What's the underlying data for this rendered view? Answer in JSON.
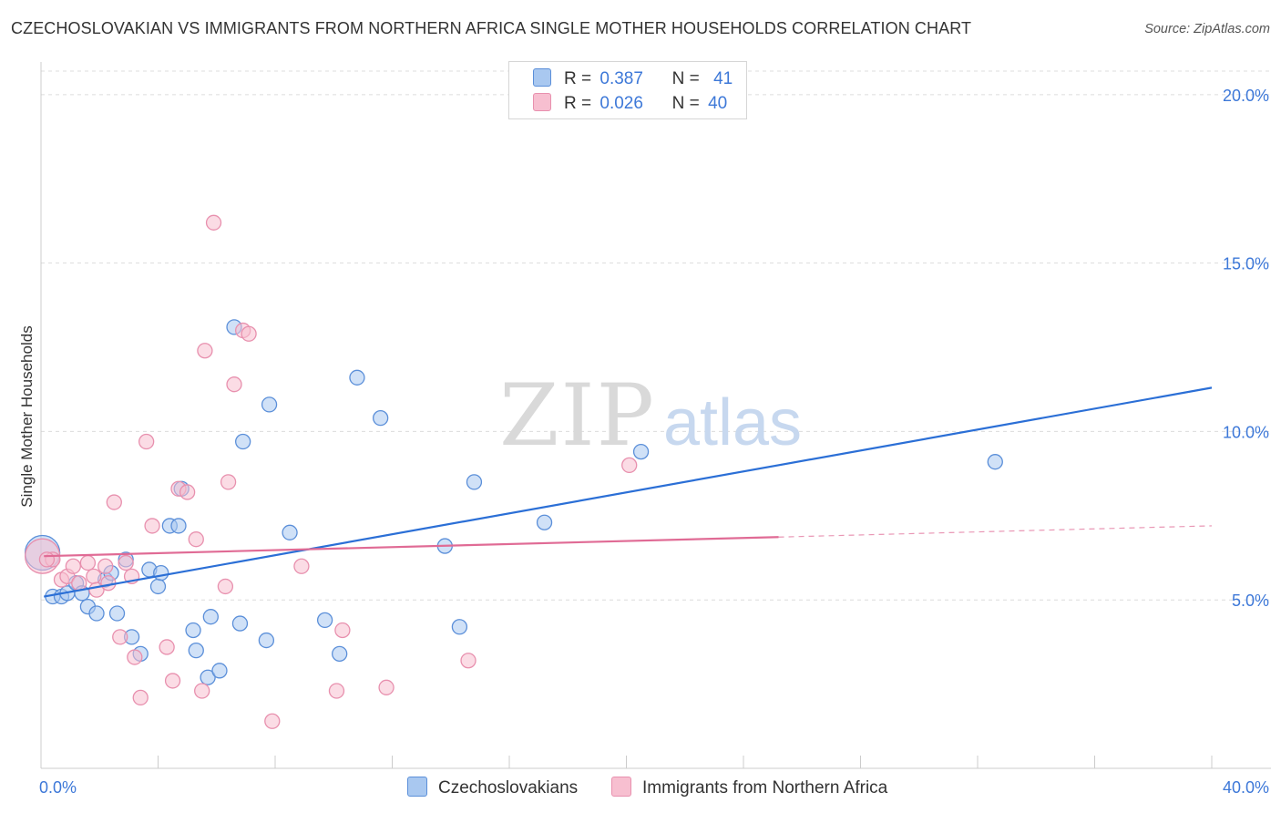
{
  "title": "CZECHOSLOVAKIAN VS IMMIGRANTS FROM NORTHERN AFRICA SINGLE MOTHER HOUSEHOLDS CORRELATION CHART",
  "source": "Source: ZipAtlas.com",
  "watermark": {
    "zip": "ZIP",
    "atlas": "atlas"
  },
  "legend": {
    "r_label": "R =",
    "n_label": "N =",
    "rows": [
      {
        "r": "0.387",
        "n": "41",
        "color": "#a9c8f0",
        "edge": "#5b8fd9"
      },
      {
        "r": "0.026",
        "n": "40",
        "color": "#f7bfd0",
        "edge": "#e890ae"
      }
    ]
  },
  "chart_data": {
    "type": "scatter",
    "title": "CZECHOSLOVAKIAN VS IMMIGRANTS FROM NORTHERN AFRICA SINGLE MOTHER HOUSEHOLDS CORRELATION CHART",
    "xlabel": "",
    "ylabel": "Single Mother Households",
    "xlim": [
      0,
      40
    ],
    "ylim": [
      0,
      20.7
    ],
    "x_tick_labels": [
      "0.0%",
      "40.0%"
    ],
    "y_ticks": [
      5,
      10,
      15,
      20
    ],
    "y_tick_labels": [
      "5.0%",
      "10.0%",
      "15.0%",
      "20.0%"
    ],
    "grid": true,
    "legend_position": "top-center",
    "series": [
      {
        "name": "Czechoslovakians",
        "color": "#a9c8f0",
        "edge": "#5b8fd9",
        "line_color": "#2b6fd6",
        "trend": {
          "x": [
            0.1,
            40
          ],
          "y": [
            5.1,
            11.3
          ],
          "dashed_from": null
        },
        "points": [
          {
            "x": 0.05,
            "y": 6.4,
            "big": true
          },
          {
            "x": 0.4,
            "y": 5.1
          },
          {
            "x": 0.7,
            "y": 5.1
          },
          {
            "x": 0.9,
            "y": 5.2
          },
          {
            "x": 1.2,
            "y": 5.5
          },
          {
            "x": 1.4,
            "y": 5.2
          },
          {
            "x": 1.6,
            "y": 4.8
          },
          {
            "x": 1.9,
            "y": 4.6
          },
          {
            "x": 2.2,
            "y": 5.6
          },
          {
            "x": 2.4,
            "y": 5.8
          },
          {
            "x": 2.6,
            "y": 4.6
          },
          {
            "x": 2.9,
            "y": 6.2
          },
          {
            "x": 3.1,
            "y": 3.9
          },
          {
            "x": 3.4,
            "y": 3.4
          },
          {
            "x": 3.7,
            "y": 5.9
          },
          {
            "x": 4.0,
            "y": 5.4
          },
          {
            "x": 4.1,
            "y": 5.8
          },
          {
            "x": 4.4,
            "y": 7.2
          },
          {
            "x": 4.7,
            "y": 7.2
          },
          {
            "x": 4.8,
            "y": 8.3
          },
          {
            "x": 5.2,
            "y": 4.1
          },
          {
            "x": 5.3,
            "y": 3.5
          },
          {
            "x": 5.7,
            "y": 2.7
          },
          {
            "x": 5.8,
            "y": 4.5
          },
          {
            "x": 6.1,
            "y": 2.9
          },
          {
            "x": 6.6,
            "y": 13.1
          },
          {
            "x": 6.8,
            "y": 4.3
          },
          {
            "x": 6.9,
            "y": 9.7
          },
          {
            "x": 7.7,
            "y": 3.8
          },
          {
            "x": 7.8,
            "y": 10.8
          },
          {
            "x": 8.5,
            "y": 7.0
          },
          {
            "x": 9.7,
            "y": 4.4
          },
          {
            "x": 10.2,
            "y": 3.4
          },
          {
            "x": 10.8,
            "y": 11.6
          },
          {
            "x": 11.6,
            "y": 10.4
          },
          {
            "x": 13.8,
            "y": 6.6
          },
          {
            "x": 14.3,
            "y": 4.2
          },
          {
            "x": 14.8,
            "y": 8.5
          },
          {
            "x": 17.2,
            "y": 7.3
          },
          {
            "x": 20.5,
            "y": 9.4
          },
          {
            "x": 32.6,
            "y": 9.1
          }
        ]
      },
      {
        "name": "Immigrants from Northern Africa",
        "color": "#f7bfd0",
        "edge": "#e890ae",
        "line_color": "#e06b95",
        "trend": {
          "x": [
            0.1,
            40
          ],
          "y": [
            6.3,
            7.2
          ],
          "dashed_from": 25.2
        },
        "points": [
          {
            "x": 0.05,
            "y": 6.3,
            "big": true
          },
          {
            "x": 0.4,
            "y": 6.2
          },
          {
            "x": 0.7,
            "y": 5.6
          },
          {
            "x": 0.9,
            "y": 5.7
          },
          {
            "x": 1.1,
            "y": 6.0
          },
          {
            "x": 1.3,
            "y": 5.5
          },
          {
            "x": 1.6,
            "y": 6.1
          },
          {
            "x": 1.8,
            "y": 5.7
          },
          {
            "x": 1.9,
            "y": 5.3
          },
          {
            "x": 2.2,
            "y": 6.0
          },
          {
            "x": 2.3,
            "y": 5.5
          },
          {
            "x": 2.5,
            "y": 7.9
          },
          {
            "x": 2.7,
            "y": 3.9
          },
          {
            "x": 2.9,
            "y": 6.1
          },
          {
            "x": 3.1,
            "y": 5.7
          },
          {
            "x": 3.2,
            "y": 3.3
          },
          {
            "x": 3.4,
            "y": 2.1
          },
          {
            "x": 3.6,
            "y": 9.7
          },
          {
            "x": 3.8,
            "y": 7.2
          },
          {
            "x": 4.3,
            "y": 3.6
          },
          {
            "x": 4.5,
            "y": 2.6
          },
          {
            "x": 4.7,
            "y": 8.3
          },
          {
            "x": 5.0,
            "y": 8.2
          },
          {
            "x": 5.3,
            "y": 6.8
          },
          {
            "x": 5.5,
            "y": 2.3
          },
          {
            "x": 5.6,
            "y": 12.4
          },
          {
            "x": 5.9,
            "y": 16.2
          },
          {
            "x": 6.3,
            "y": 5.4
          },
          {
            "x": 6.4,
            "y": 8.5
          },
          {
            "x": 6.6,
            "y": 11.4
          },
          {
            "x": 6.9,
            "y": 13.0
          },
          {
            "x": 7.1,
            "y": 12.9
          },
          {
            "x": 7.9,
            "y": 1.4
          },
          {
            "x": 8.9,
            "y": 6.0
          },
          {
            "x": 10.1,
            "y": 2.3
          },
          {
            "x": 10.3,
            "y": 4.1
          },
          {
            "x": 11.8,
            "y": 2.4
          },
          {
            "x": 14.6,
            "y": 3.2
          },
          {
            "x": 20.1,
            "y": 9.0
          },
          {
            "x": 0.2,
            "y": 6.2
          }
        ]
      }
    ]
  }
}
